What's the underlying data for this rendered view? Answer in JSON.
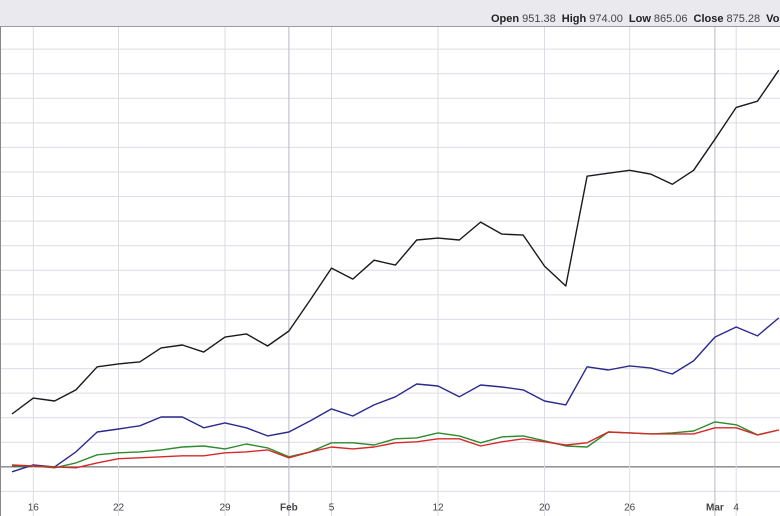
{
  "header": {
    "items": [
      {
        "label": "Open",
        "value": "951.38"
      },
      {
        "label": "High",
        "value": "974.00"
      },
      {
        "label": "Low",
        "value": "865.06"
      },
      {
        "label": "Close",
        "value": "875.28"
      },
      {
        "label": "Volum"
      }
    ]
  },
  "chart_data": {
    "type": "line",
    "categories": [
      null,
      "16",
      null,
      null,
      null,
      "22",
      null,
      null,
      null,
      null,
      "29",
      null,
      null,
      "Feb",
      null,
      "5",
      null,
      null,
      null,
      null,
      "12",
      null,
      null,
      null,
      null,
      "20",
      null,
      null,
      null,
      "26",
      null,
      null,
      null,
      "Mar",
      "4",
      null,
      null
    ],
    "ylim": [
      -20,
      179
    ],
    "yticks": [
      -10,
      0,
      10,
      20,
      30,
      40,
      50,
      60,
      70,
      80,
      90,
      100,
      110,
      120,
      130,
      140,
      150,
      160,
      170
    ],
    "grid": true,
    "series": [
      {
        "color": "#1a1a1a",
        "values": [
          21.5,
          28.0,
          26.8,
          31.3,
          40.7,
          41.9,
          42.7,
          48.4,
          49.6,
          46.7,
          52.8,
          54.1,
          49.2,
          55.3,
          67.9,
          80.9,
          76.4,
          84.1,
          82.1,
          92.3,
          93.1,
          92.3,
          99.6,
          94.7,
          94.3,
          81.7,
          73.6,
          118.3,
          119.5,
          120.7,
          119.1,
          115.0,
          120.7,
          133.3,
          146.3,
          148.8,
          161.4
        ]
      },
      {
        "color": "#2a2a8c",
        "values": [
          -2.0,
          0.8,
          0,
          6.1,
          14.2,
          15.4,
          16.7,
          20.3,
          20.3,
          15.9,
          17.9,
          15.9,
          12.6,
          14.2,
          18.7,
          23.6,
          20.7,
          25.2,
          28.5,
          33.7,
          32.9,
          28.5,
          33.3,
          32.5,
          31.3,
          26.8,
          25.2,
          40.7,
          39.4,
          41.1,
          40.2,
          37.8,
          43.1,
          52.8,
          56.9,
          53.3,
          60.6
        ]
      },
      {
        "color": "#2e8b2e",
        "values": [
          0.4,
          0.4,
          -0.4,
          1.6,
          4.9,
          5.7,
          6.1,
          6.9,
          8.1,
          8.5,
          7.3,
          9.3,
          7.7,
          4.1,
          6.1,
          9.8,
          9.8,
          8.9,
          11.4,
          11.8,
          13.8,
          12.6,
          9.8,
          12.2,
          12.6,
          10.6,
          8.5,
          8.1,
          14.2,
          13.8,
          13.4,
          13.8,
          14.6,
          18.3,
          17.1,
          13.0,
          15.0
        ]
      },
      {
        "color": "#d42a2a",
        "values": [
          0.8,
          0.4,
          0,
          -0.4,
          1.6,
          3.3,
          3.7,
          4.1,
          4.5,
          4.5,
          5.7,
          6.1,
          6.9,
          3.7,
          6.1,
          8.1,
          7.3,
          8.1,
          9.8,
          10.2,
          11.4,
          11.4,
          8.5,
          10.2,
          11.4,
          10.2,
          8.9,
          9.8,
          14.2,
          13.8,
          13.4,
          13.4,
          13.4,
          15.9,
          15.9,
          13.0,
          15.0
        ]
      }
    ]
  }
}
